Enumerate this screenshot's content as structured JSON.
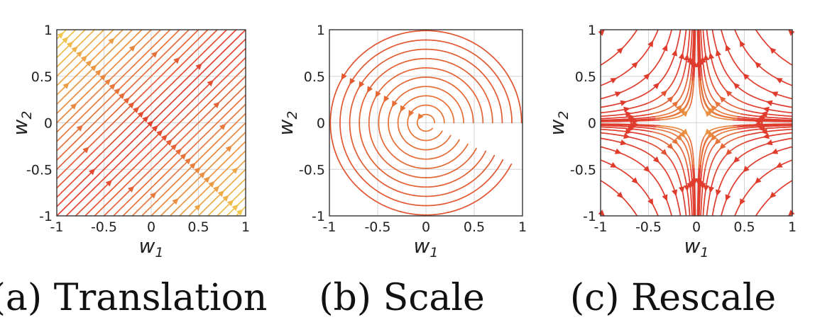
{
  "chart_data": [
    {
      "type": "streamplot",
      "caption": "(a) Translation",
      "field": "translation",
      "xlabel": "w",
      "xlabel_sub": "1",
      "ylabel": "w",
      "ylabel_sub": "2",
      "xlim": [
        -1,
        1
      ],
      "ylim": [
        -1,
        1
      ],
      "xticks": [
        "-1",
        "-0.5",
        "0",
        "0.5",
        "1"
      ],
      "yticks": [
        "-1",
        "-0.5",
        "0",
        "0.5",
        "1"
      ],
      "grid": true,
      "colors": [
        "#e0402e",
        "#f0c850"
      ]
    },
    {
      "type": "streamplot",
      "caption": "(b) Scale",
      "field": "rotation",
      "xlabel": "w",
      "xlabel_sub": "1",
      "ylabel": "w",
      "ylabel_sub": "2",
      "xlim": [
        -1,
        1
      ],
      "ylim": [
        -1,
        1
      ],
      "xticks": [
        "-1",
        "-0.5",
        "0",
        "0.5",
        "1"
      ],
      "yticks": [
        "-1",
        "-0.5",
        "0",
        "0.5",
        "1"
      ],
      "grid": true,
      "colors": [
        "#e0502e",
        "#f0a040"
      ]
    },
    {
      "type": "streamplot",
      "caption": "(c) Rescale",
      "field": "hyperbolic",
      "xlabel": "w",
      "xlabel_sub": "1",
      "ylabel": "w",
      "ylabel_sub": "2",
      "xlim": [
        -1,
        1
      ],
      "ylim": [
        -1,
        1
      ],
      "xticks": [
        "-1",
        "-0.5",
        "0",
        "0.5",
        "1"
      ],
      "yticks": [
        "-1",
        "-0.5",
        "0",
        "0.5",
        "1"
      ],
      "grid": true,
      "colors": [
        "#e03c2e",
        "#f0c050"
      ]
    }
  ]
}
